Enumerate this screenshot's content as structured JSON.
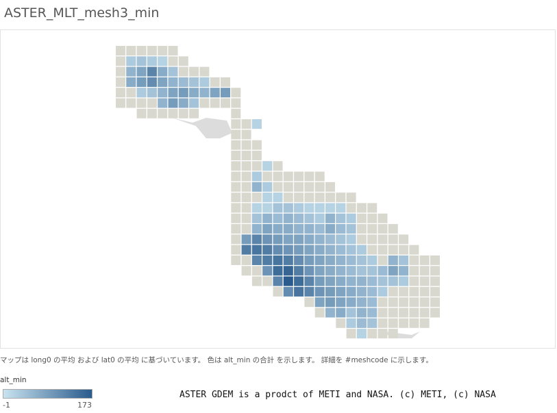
{
  "map": {
    "title": "ASTER_MLT_mesh3_min",
    "caption": "マップは long0 の平均 および lat0 の平均 に基づいています。 色は alt_min の合計 を示します。 詳細を #meshcode に示します。",
    "legend": {
      "title": "alt_min",
      "min": -1,
      "max": 173,
      "min_color": "#c9e3f0",
      "max_color": "#2a5b8c"
    },
    "cells": [
      [
        null,
        null,
        null,
        null,
        null,
        null,
        null,
        null,
        null,
        null,
        null,
        null,
        null,
        null,
        null,
        null,
        null,
        null,
        null,
        null,
        null,
        null,
        null,
        null,
        null,
        null,
        null,
        null,
        null,
        null,
        null
      ],
      [
        null,
        30,
        40,
        30,
        20,
        null,
        null,
        null,
        null,
        null,
        null,
        null,
        null,
        null,
        null,
        null,
        null,
        null,
        null,
        null,
        null,
        null,
        null,
        null,
        null,
        null,
        null,
        null,
        null,
        null,
        null
      ],
      [
        null,
        60,
        80,
        120,
        70,
        40,
        null,
        null,
        null,
        null,
        null,
        null,
        null,
        null,
        null,
        null,
        null,
        null,
        null,
        null,
        null,
        null,
        null,
        null,
        null,
        null,
        null,
        null,
        null,
        null,
        null
      ],
      [
        null,
        70,
        90,
        110,
        80,
        60,
        50,
        40,
        30,
        null,
        null,
        null,
        null,
        null,
        null,
        null,
        null,
        null,
        null,
        null,
        null,
        null,
        null,
        null,
        null,
        null,
        null,
        null,
        null,
        null,
        null
      ],
      [
        null,
        null,
        30,
        40,
        60,
        80,
        90,
        70,
        60,
        80,
        90,
        null,
        null,
        null,
        null,
        null,
        null,
        null,
        null,
        null,
        null,
        null,
        null,
        null,
        null,
        null,
        null,
        null,
        null,
        null,
        null
      ],
      [
        null,
        null,
        null,
        null,
        60,
        90,
        70,
        40,
        null,
        null,
        null,
        null,
        null,
        null,
        null,
        null,
        null,
        null,
        null,
        null,
        null,
        null,
        null,
        null,
        null,
        null,
        null,
        null,
        null,
        null,
        null
      ],
      [
        null,
        null,
        null,
        null,
        null,
        null,
        null,
        null,
        null,
        null,
        null,
        null,
        null,
        null,
        null,
        null,
        null,
        null,
        null,
        null,
        null,
        null,
        null,
        null,
        null,
        null,
        null,
        null,
        null,
        null,
        null
      ],
      [
        null,
        null,
        null,
        null,
        null,
        null,
        null,
        null,
        null,
        null,
        null,
        null,
        null,
        20,
        null,
        null,
        null,
        null,
        null,
        null,
        null,
        null,
        null,
        null,
        null,
        null,
        null,
        null,
        null,
        null,
        null
      ],
      [
        null,
        null,
        null,
        null,
        null,
        null,
        null,
        null,
        null,
        null,
        null,
        null,
        null,
        null,
        null,
        null,
        null,
        null,
        null,
        null,
        null,
        null,
        null,
        null,
        null,
        null,
        null,
        null,
        null,
        null,
        null
      ],
      [
        null,
        null,
        null,
        null,
        null,
        null,
        null,
        null,
        null,
        null,
        null,
        null,
        null,
        null,
        null,
        null,
        null,
        null,
        null,
        null,
        null,
        null,
        null,
        null,
        null,
        null,
        null,
        null,
        null,
        null,
        null
      ],
      [
        null,
        null,
        null,
        null,
        null,
        null,
        null,
        null,
        null,
        null,
        null,
        null,
        null,
        null,
        null,
        null,
        null,
        null,
        null,
        null,
        null,
        null,
        null,
        null,
        null,
        null,
        null,
        null,
        null,
        null,
        null
      ],
      [
        null,
        null,
        null,
        null,
        null,
        null,
        null,
        null,
        null,
        null,
        null,
        null,
        null,
        null,
        20,
        null,
        null,
        null,
        null,
        null,
        null,
        null,
        null,
        null,
        null,
        null,
        null,
        null,
        null,
        null,
        null
      ],
      [
        null,
        null,
        null,
        null,
        null,
        null,
        null,
        null,
        null,
        null,
        null,
        null,
        null,
        30,
        null,
        null,
        null,
        null,
        null,
        null,
        null,
        null,
        null,
        null,
        null,
        null,
        null,
        null,
        null,
        null,
        null
      ],
      [
        null,
        null,
        null,
        null,
        null,
        null,
        null,
        null,
        null,
        null,
        null,
        null,
        null,
        60,
        30,
        null,
        null,
        null,
        null,
        null,
        null,
        null,
        null,
        null,
        null,
        null,
        null,
        null,
        null,
        null,
        null
      ],
      [
        null,
        null,
        null,
        null,
        null,
        null,
        null,
        null,
        null,
        null,
        null,
        null,
        null,
        null,
        20,
        20,
        null,
        null,
        null,
        null,
        null,
        null,
        null,
        null,
        null,
        null,
        null,
        null,
        null,
        null,
        null
      ],
      [
        null,
        null,
        null,
        null,
        null,
        null,
        null,
        null,
        null,
        null,
        null,
        null,
        null,
        20,
        20,
        40,
        40,
        30,
        20,
        20,
        20,
        20,
        null,
        null,
        null,
        null,
        null,
        null,
        null,
        null,
        null
      ],
      [
        null,
        null,
        null,
        null,
        null,
        null,
        null,
        null,
        null,
        null,
        null,
        null,
        null,
        40,
        60,
        50,
        60,
        50,
        40,
        30,
        60,
        40,
        30,
        null,
        null,
        null,
        null,
        null,
        null,
        null,
        null
      ],
      [
        null,
        null,
        null,
        null,
        null,
        null,
        null,
        null,
        null,
        null,
        null,
        null,
        null,
        60,
        80,
        70,
        70,
        60,
        60,
        50,
        70,
        50,
        40,
        null,
        null,
        null,
        null,
        null,
        null,
        null,
        null
      ],
      [
        null,
        null,
        null,
        null,
        null,
        null,
        null,
        null,
        null,
        null,
        null,
        null,
        90,
        120,
        100,
        90,
        80,
        80,
        70,
        60,
        50,
        40,
        30,
        null,
        null,
        null,
        null,
        null,
        null,
        null,
        null
      ],
      [
        null,
        null,
        null,
        null,
        null,
        null,
        null,
        null,
        null,
        null,
        null,
        null,
        130,
        140,
        130,
        110,
        100,
        90,
        80,
        70,
        60,
        50,
        40,
        30,
        null,
        null,
        null,
        null,
        null,
        null,
        null
      ],
      [
        null,
        null,
        null,
        null,
        null,
        null,
        null,
        null,
        null,
        null,
        null,
        null,
        null,
        120,
        130,
        140,
        130,
        110,
        90,
        80,
        70,
        60,
        50,
        40,
        30,
        null,
        60,
        40,
        null,
        null,
        null
      ],
      [
        null,
        null,
        null,
        null,
        null,
        null,
        null,
        null,
        null,
        null,
        null,
        null,
        null,
        null,
        100,
        150,
        160,
        130,
        100,
        80,
        70,
        60,
        50,
        40,
        40,
        50,
        80,
        60,
        null,
        null,
        null
      ],
      [
        null,
        null,
        null,
        null,
        null,
        null,
        null,
        null,
        null,
        null,
        null,
        null,
        null,
        null,
        null,
        120,
        173,
        150,
        120,
        90,
        80,
        70,
        60,
        60,
        50,
        40,
        40,
        30,
        null,
        null,
        null
      ],
      [
        null,
        null,
        null,
        null,
        null,
        null,
        null,
        null,
        null,
        null,
        null,
        null,
        null,
        null,
        null,
        null,
        110,
        140,
        120,
        100,
        90,
        80,
        70,
        60,
        50,
        30,
        null,
        null,
        null,
        null,
        null
      ],
      [
        null,
        null,
        null,
        null,
        null,
        null,
        null,
        null,
        null,
        null,
        null,
        null,
        null,
        null,
        null,
        null,
        null,
        null,
        null,
        80,
        90,
        80,
        70,
        60,
        50,
        null,
        null,
        null,
        null,
        null,
        null
      ],
      [
        null,
        null,
        null,
        null,
        null,
        null,
        null,
        null,
        null,
        null,
        null,
        null,
        null,
        null,
        null,
        null,
        null,
        null,
        null,
        null,
        60,
        70,
        40,
        60,
        50,
        null,
        null,
        null,
        null,
        null,
        null
      ],
      [
        null,
        null,
        null,
        null,
        null,
        null,
        null,
        null,
        null,
        null,
        null,
        null,
        null,
        null,
        null,
        null,
        null,
        null,
        null,
        null,
        null,
        null,
        30,
        50,
        40,
        null,
        null,
        null,
        null,
        null,
        null
      ],
      [
        null,
        null,
        null,
        null,
        null,
        null,
        null,
        null,
        null,
        null,
        null,
        null,
        null,
        null,
        null,
        null,
        null,
        null,
        null,
        null,
        null,
        null,
        null,
        20,
        null,
        null,
        null,
        null,
        null,
        null,
        null
      ]
    ]
  },
  "attribution": "ASTER GDEM is a prodct of METI and NASA. (c) METI, (c) NASA"
}
